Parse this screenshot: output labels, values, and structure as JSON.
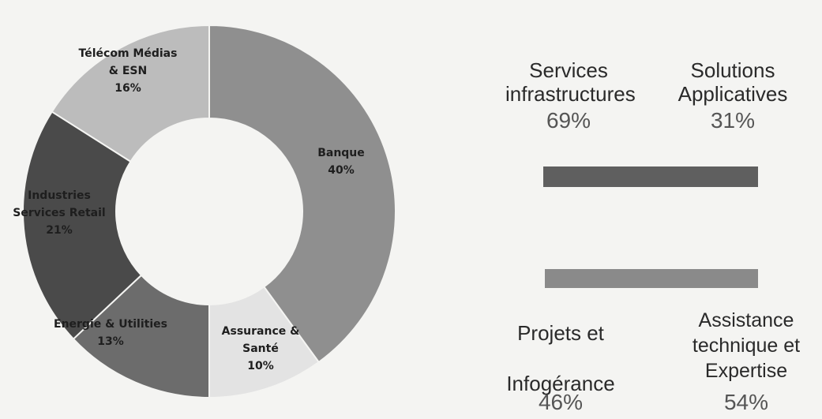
{
  "chart_data": [
    {
      "type": "pie",
      "donut": true,
      "slices": [
        {
          "label": "Banque",
          "value": 40,
          "pct_label": "40%",
          "color": "#8f8f8f"
        },
        {
          "label": "Assurance & Santé",
          "value": 10,
          "pct_label": "10%",
          "color": "#e3e3e3"
        },
        {
          "label": "Energie & Utilities",
          "value": 13,
          "pct_label": "13%",
          "color": "#6c6c6c"
        },
        {
          "label": "Industries Services Retail",
          "value": 21,
          "pct_label": "21%",
          "color": "#4a4a4a"
        },
        {
          "label": "Télécom Médias & ESN",
          "value": 16,
          "pct_label": "16%",
          "color": "#bcbcbc"
        }
      ]
    },
    {
      "type": "bar",
      "stacked": true,
      "segments": [
        {
          "label": "Services infrastructures",
          "value": 69,
          "pct_label": "69%",
          "color": "#5f5f5f"
        },
        {
          "label": "Solutions Applicatives",
          "value": 31,
          "pct_label": "31%",
          "color": "#5f5f5f"
        }
      ]
    },
    {
      "type": "bar",
      "stacked": true,
      "segments": [
        {
          "label": "Projets et Infogérance",
          "value": 46,
          "pct_label": "46%",
          "color": "#8a8a8a"
        },
        {
          "label": "Assistance technique et Expertise",
          "value": 54,
          "pct_label": "54%",
          "color": "#8a8a8a"
        }
      ]
    }
  ],
  "labels": {
    "services_infra": "Services infrastructures",
    "solutions_app": "Solutions Applicatives",
    "pct_infra": "69%",
    "pct_app": "31%",
    "projets": "Projets et Infogérance",
    "assistance": "Assistance technique et Expertise",
    "pct_projets": "46%",
    "pct_assistance": "54%"
  }
}
